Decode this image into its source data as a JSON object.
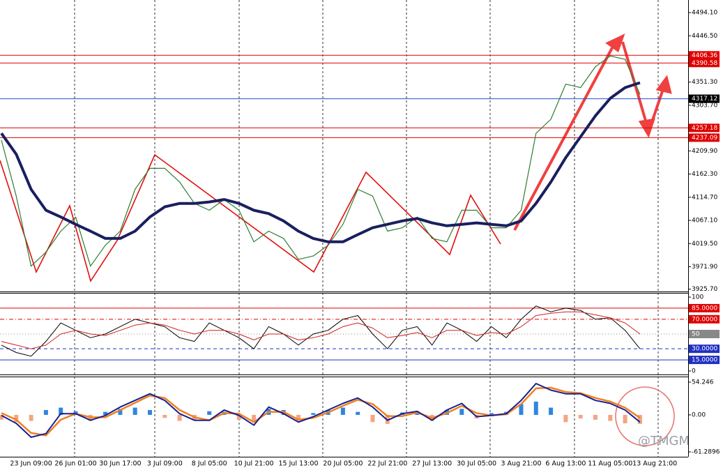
{
  "chart_data": [
    {
      "type": "line",
      "ylim": [
        3921,
        4520
      ],
      "yticks": [
        {
          "value": 4494.1,
          "label": "4494.10"
        },
        {
          "value": 4446.5,
          "label": "4446.50"
        },
        {
          "value": 4351.3,
          "label": "4351.30"
        },
        {
          "value": 4303.7,
          "label": "4303.70"
        },
        {
          "value": 4209.9,
          "label": "4209.90"
        },
        {
          "value": 4162.3,
          "label": "4162.30"
        },
        {
          "value": 4114.7,
          "label": "4114.70"
        },
        {
          "value": 4067.1,
          "label": "4067.10"
        },
        {
          "value": 4019.5,
          "label": "4019.50"
        },
        {
          "value": 3971.9,
          "label": "3971.90"
        },
        {
          "value": 3925.7,
          "label": "3925.70"
        }
      ],
      "levels": [
        {
          "value": 4406.36,
          "color": "#e00000",
          "style": "solid"
        },
        {
          "value": 4390.58,
          "color": "#e00000",
          "style": "solid"
        },
        {
          "value": 4317.12,
          "color": "#2050d0",
          "style": "solid",
          "tag_color": "#000000"
        },
        {
          "value": 4257.18,
          "color": "#e00000",
          "style": "solid"
        },
        {
          "value": 4237.09,
          "color": "#e00000",
          "style": "solid"
        }
      ],
      "series": [
        {
          "type": "line",
          "color": "#2e7d32",
          "width": 1.2,
          "values": [
            4232,
            4117,
            3973,
            4002,
            4045,
            4074,
            3973,
            4016,
            4045,
            4131,
            4174,
            4174,
            4146,
            4102,
            4088,
            4110,
            4088,
            4023,
            4045,
            4030,
            3987,
            3994,
            4016,
            4059,
            4131,
            4117,
            4045,
            4052,
            4074,
            4030,
            4023,
            4088,
            4088,
            4052,
            4052,
            4088,
            4246,
            4275,
            4347,
            4340,
            4383,
            4405,
            4398,
            4326,
            null
          ]
        },
        {
          "type": "line",
          "color": "#1a1f5e",
          "width": 4,
          "values": [
            4246,
            4203,
            4131,
            4088,
            4074,
            4059,
            4045,
            4030,
            4030,
            4045,
            4074,
            4095,
            4102,
            4102,
            4105,
            4110,
            4102,
            4088,
            4081,
            4066,
            4045,
            4030,
            4023,
            4023,
            4038,
            4052,
            4059,
            4066,
            4071,
            4062,
            4056,
            4059,
            4062,
            4059,
            4056,
            4066,
            4102,
            4146,
            4196,
            4239,
            4282,
            4318,
            4340,
            4350,
            null
          ]
        }
      ]
    },
    {
      "type": "line",
      "ylim": [
        -5.7,
        105.7
      ],
      "yticks": [
        100,
        {
          "value": 85,
          "label": "85.0000"
        },
        {
          "value": 70,
          "label": "70.0000"
        },
        50,
        {
          "value": 30,
          "label": "30.0000"
        },
        {
          "value": 15,
          "label": "15.0000"
        },
        0
      ],
      "levels": [
        {
          "value": 85,
          "color": "#e00000",
          "style": "solid"
        },
        {
          "value": 70,
          "color": "#e00000",
          "style": "dashdot"
        },
        {
          "value": 50,
          "color": "#888888",
          "style": "dot"
        },
        {
          "value": 30,
          "color": "#2030c0",
          "style": "dash"
        },
        {
          "value": 15,
          "color": "#2030c0",
          "style": "solid"
        }
      ],
      "series": [
        {
          "type": "line",
          "color": "#000000",
          "width": 1,
          "values": [
            35,
            25,
            20,
            40,
            65,
            55,
            45,
            50,
            60,
            70,
            65,
            60,
            45,
            40,
            65,
            55,
            45,
            30,
            60,
            50,
            35,
            50,
            55,
            70,
            75,
            50,
            30,
            55,
            60,
            35,
            65,
            55,
            40,
            60,
            45,
            70,
            88,
            80,
            85,
            82,
            70,
            72,
            55,
            30,
            null
          ]
        },
        {
          "type": "line",
          "color": "#d02020",
          "width": 1,
          "values": [
            40,
            35,
            30,
            35,
            50,
            55,
            50,
            48,
            55,
            62,
            65,
            62,
            55,
            50,
            55,
            55,
            50,
            42,
            50,
            50,
            42,
            45,
            50,
            60,
            65,
            58,
            45,
            48,
            52,
            45,
            55,
            55,
            48,
            52,
            50,
            60,
            75,
            78,
            80,
            80,
            76,
            72,
            65,
            50,
            null
          ]
        }
      ]
    },
    {
      "type": "bar",
      "ylim": [
        -69.4,
        63.5
      ],
      "yticks": [
        54.246,
        {
          "value": 0,
          "label": "0.00"
        },
        -61.2896
      ],
      "categories": [
        null,
        null,
        "23 Jun 09:00",
        null,
        null,
        "26 Jun 01:00",
        null,
        null,
        "30 Jun 17:00",
        null,
        null,
        "3 Jul 09:00",
        null,
        null,
        "8 Jul 05:00",
        null,
        null,
        "10 Jul 21:00",
        null,
        null,
        "15 Jul 13:00",
        null,
        null,
        "20 Jul 05:00",
        null,
        null,
        "22 Jul 21:00",
        null,
        null,
        "27 Jul 13:00",
        null,
        null,
        "30 Jul 05:00",
        null,
        null,
        "3 Aug 21:00",
        null,
        null,
        "6 Aug 13:00",
        null,
        null,
        "11 Aug 05:00",
        null,
        null,
        "13 Aug 21:00"
      ],
      "watermark": "@TMGM",
      "series": [
        {
          "type": "bar",
          "color": "#2e86de",
          "negative_color": "#f4a582",
          "values": [
            -8,
            -12,
            -10,
            8,
            12,
            6,
            -10,
            5,
            10,
            12,
            8,
            -5,
            -10,
            -8,
            6,
            5,
            -8,
            -12,
            10,
            8,
            -10,
            3,
            8,
            12,
            5,
            -12,
            -15,
            4,
            6,
            -10,
            8,
            10,
            -6,
            3,
            5,
            18,
            22,
            12,
            -12,
            -6,
            -8,
            -10,
            -14,
            -15,
            null
          ]
        },
        {
          "type": "line",
          "color": "#f08020",
          "width": 2.5,
          "values": [
            3,
            -8,
            -30,
            -34,
            -8,
            2,
            -4,
            -4,
            8,
            20,
            32,
            28,
            8,
            -4,
            -9,
            3,
            2,
            -12,
            5,
            5,
            -8,
            -5,
            4,
            15,
            25,
            18,
            -2,
            -2,
            4,
            -5,
            3,
            15,
            3,
            -1,
            1,
            18,
            44,
            45,
            38,
            36,
            28,
            22,
            12,
            -5,
            null
          ]
        },
        {
          "type": "line",
          "color": "#1a1f8e",
          "width": 2,
          "values": [
            -1,
            -14,
            -37,
            -31,
            2,
            2,
            -9,
            -1,
            13,
            24,
            35,
            24,
            2,
            -9,
            -9,
            8,
            -1,
            -17,
            13,
            2,
            -12,
            -3,
            8,
            19,
            28,
            13,
            -9,
            2,
            6,
            -9,
            8,
            19,
            -3,
            -1,
            2,
            24,
            52,
            41,
            35,
            35,
            24,
            19,
            8,
            -12,
            null
          ]
        }
      ]
    }
  ]
}
